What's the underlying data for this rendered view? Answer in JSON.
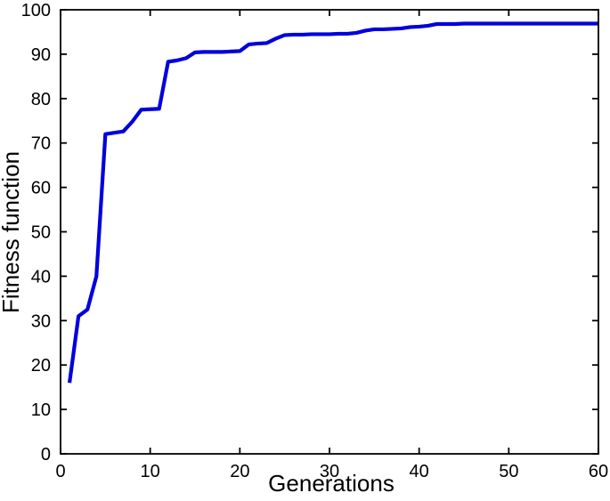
{
  "chart_data": {
    "type": "line",
    "title": "",
    "xlabel": "Generations",
    "ylabel": "Fitness function",
    "xlim": [
      0,
      60
    ],
    "ylim": [
      0,
      100
    ],
    "x_ticks": [
      0,
      10,
      20,
      30,
      40,
      50,
      60
    ],
    "y_ticks": [
      0,
      10,
      20,
      30,
      40,
      50,
      60,
      70,
      80,
      90,
      100
    ],
    "grid": false,
    "legend": null,
    "series": [
      {
        "name": "Fitness function",
        "color": "#0000dd",
        "line_width": 4.2,
        "x": [
          1,
          2,
          3,
          4,
          5,
          6,
          7,
          8,
          9,
          10,
          11,
          12,
          13,
          14,
          15,
          16,
          17,
          18,
          19,
          20,
          21,
          22,
          23,
          24,
          25,
          26,
          27,
          28,
          29,
          30,
          31,
          32,
          33,
          34,
          35,
          36,
          37,
          38,
          39,
          40,
          41,
          42,
          43,
          44,
          45,
          46,
          47,
          48,
          49,
          50,
          51,
          52,
          53,
          54,
          55,
          56,
          57,
          58,
          59,
          60
        ],
        "y": [
          16,
          31,
          32.5,
          40,
          72,
          72.3,
          72.6,
          74.8,
          77.5,
          77.6,
          77.7,
          88.3,
          88.6,
          89.1,
          90.4,
          90.5,
          90.5,
          90.5,
          90.6,
          90.7,
          92.2,
          92.4,
          92.5,
          93.5,
          94.3,
          94.4,
          94.4,
          94.5,
          94.5,
          94.5,
          94.6,
          94.6,
          94.8,
          95.3,
          95.6,
          95.6,
          95.7,
          95.8,
          96.1,
          96.2,
          96.4,
          96.8,
          96.8,
          96.8,
          96.9,
          96.9,
          96.9,
          96.9,
          96.9,
          96.9,
          96.9,
          96.9,
          96.9,
          96.9,
          96.9,
          96.9,
          96.9,
          96.9,
          96.9,
          96.9
        ]
      }
    ]
  },
  "colors": {
    "background": "#ffffff",
    "axis": "#000000",
    "text": "#000000",
    "line": "#0000dd"
  }
}
